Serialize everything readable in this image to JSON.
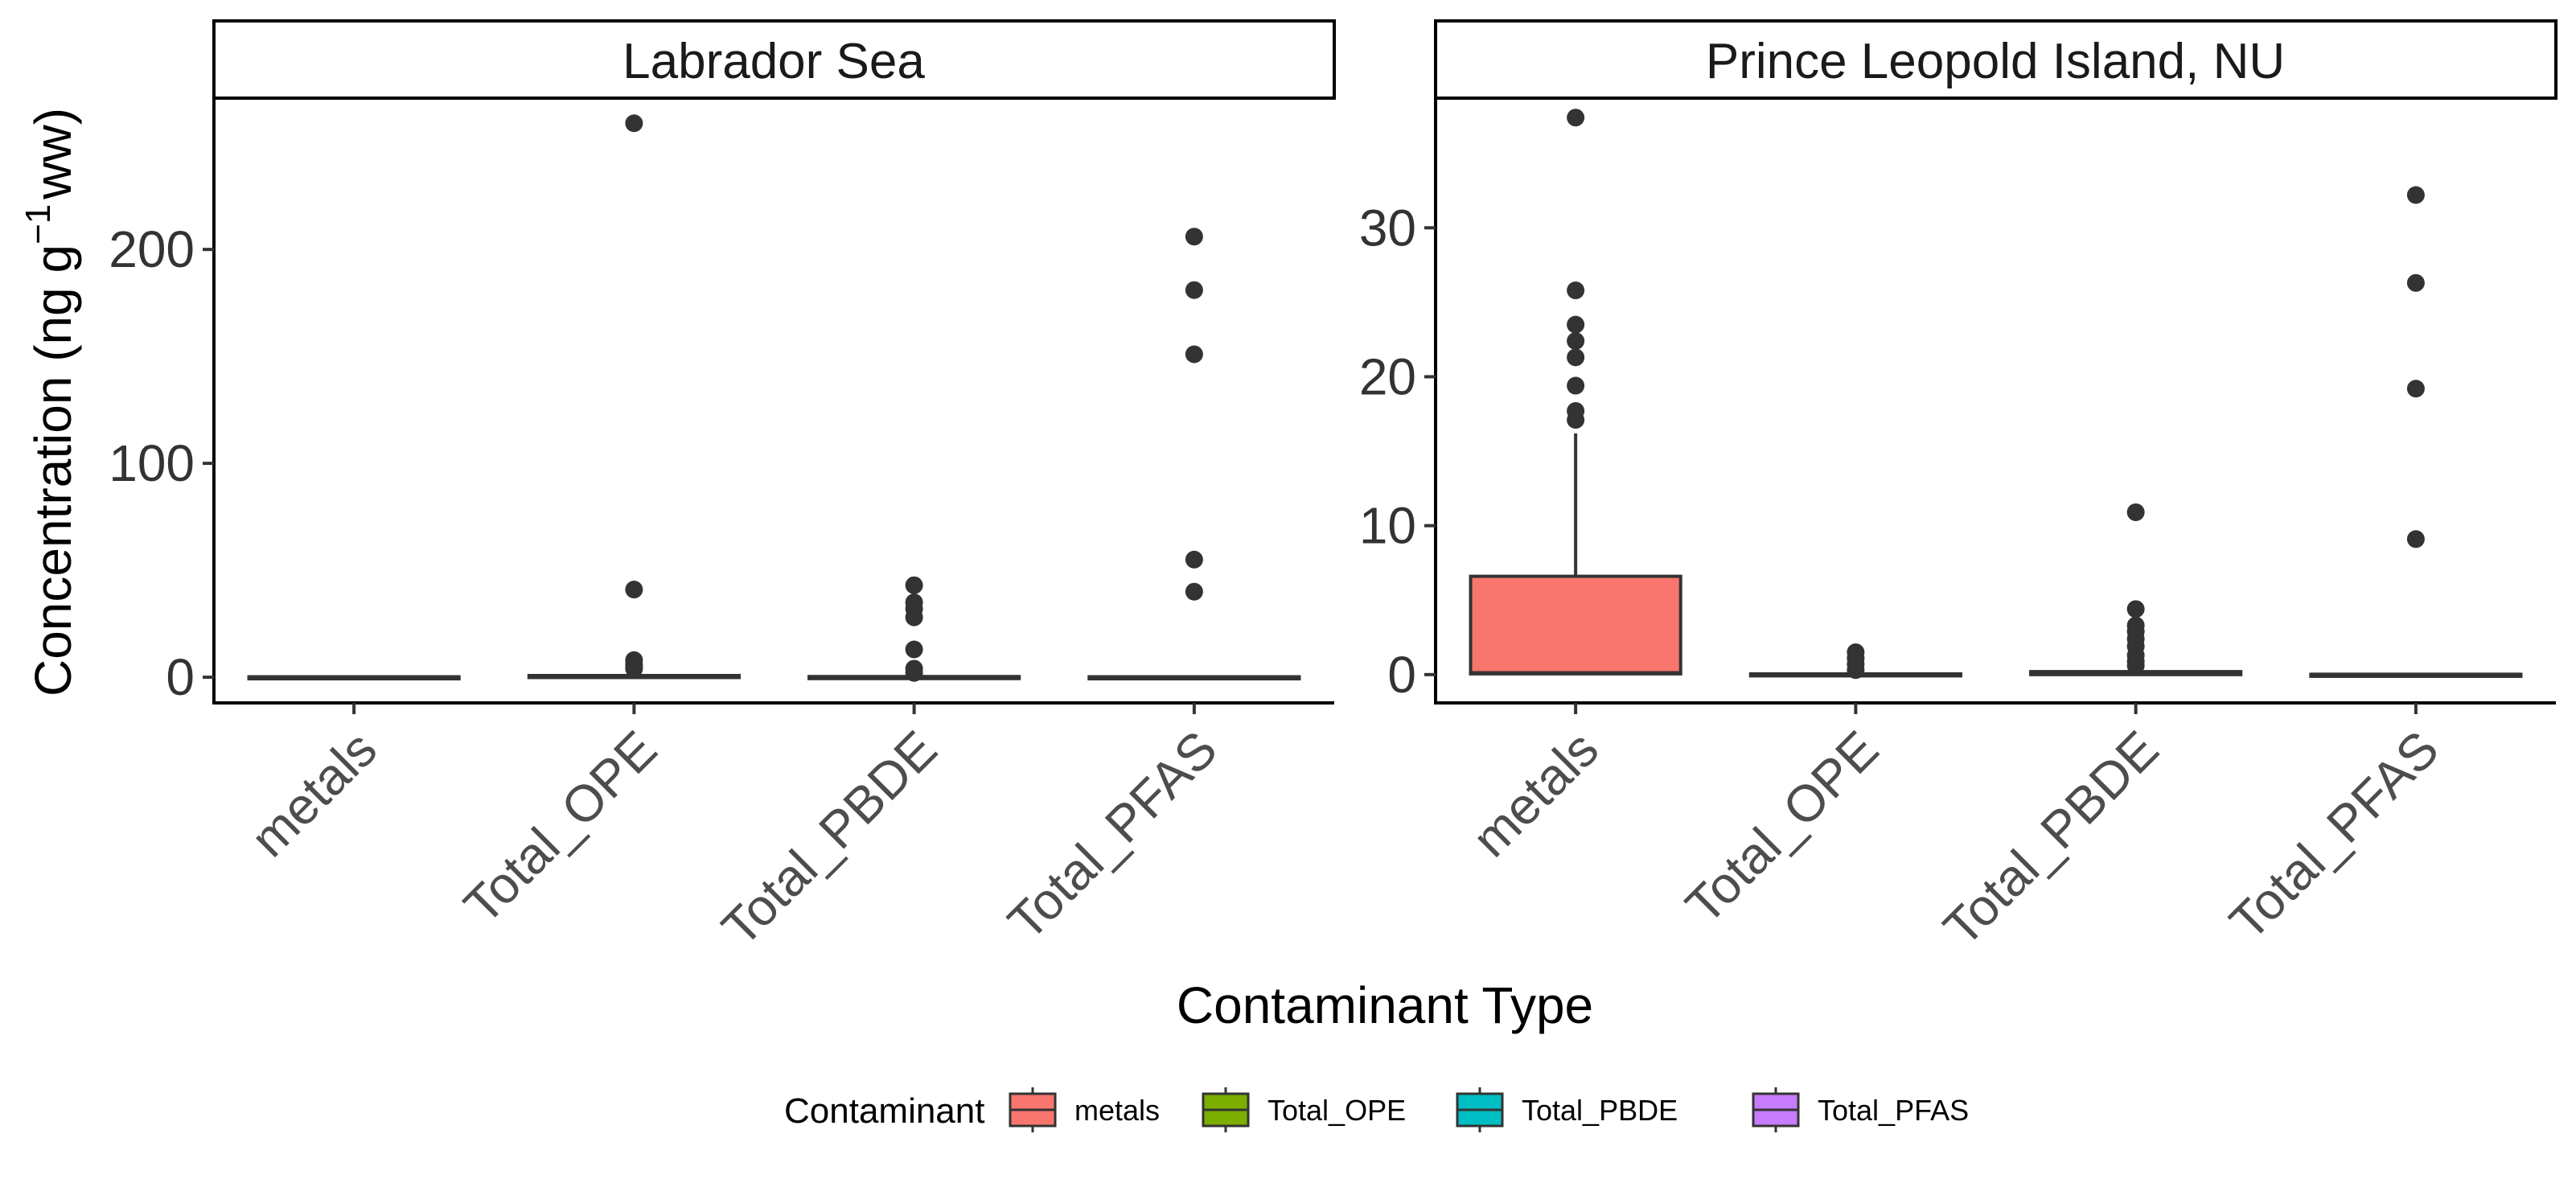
{
  "chart_data": [
    {
      "type": "boxplot",
      "facet": "Labrador Sea",
      "categories": [
        "metals",
        "Total_OPE",
        "Total_PBDE",
        "Total_PFAS"
      ],
      "ylim": [
        -12,
        270
      ],
      "yticks": [
        0,
        100,
        200
      ],
      "boxes": [
        {
          "category": "metals",
          "min": 0,
          "q1": 0,
          "median": 0,
          "q3": 0.2,
          "max": 0.5,
          "outliers": []
        },
        {
          "category": "Total_OPE",
          "min": 0,
          "q1": 0,
          "median": 0.3,
          "q3": 0.8,
          "max": 1.5,
          "outliers": [
            259,
            41,
            8,
            6,
            5,
            4
          ]
        },
        {
          "category": "Total_PBDE",
          "min": 0,
          "q1": 0,
          "median": 0.1,
          "q3": 0.3,
          "max": 0.8,
          "outliers": [
            43,
            35,
            32,
            28,
            13,
            4,
            2
          ]
        },
        {
          "category": "Total_PFAS",
          "min": 0,
          "q1": 0,
          "median": 0,
          "q3": 0.2,
          "max": 0.5,
          "outliers": [
            206,
            181,
            151,
            55,
            40
          ]
        }
      ]
    },
    {
      "type": "boxplot",
      "facet": "Prince Leopold Island, NU",
      "categories": [
        "metals",
        "Total_OPE",
        "Total_PBDE",
        "Total_PFAS"
      ],
      "ylim": [
        -1.9,
        38.6
      ],
      "yticks": [
        0,
        10,
        20,
        30
      ],
      "boxes": [
        {
          "category": "metals",
          "min": 0,
          "q1": 0.05,
          "median": 0.1,
          "q3": 6.6,
          "max": 16.2,
          "outliers": [
            37.4,
            25.8,
            23.5,
            22.4,
            21.3,
            19.4,
            17.7,
            17.1
          ]
        },
        {
          "category": "Total_OPE",
          "min": 0,
          "q1": 0,
          "median": 0,
          "q3": 0.05,
          "max": 0.1,
          "outliers": [
            1.5,
            1.1,
            0.7,
            0.3
          ]
        },
        {
          "category": "Total_PBDE",
          "min": 0,
          "q1": 0,
          "median": 0.05,
          "q3": 0.2,
          "max": 0.4,
          "outliers": [
            10.9,
            4.4,
            3.3,
            2.9,
            2.4,
            1.9,
            1.3,
            0.9,
            0.6
          ]
        },
        {
          "category": "Total_PFAS",
          "min": 0,
          "q1": 0,
          "median": 0,
          "q3": 0.02,
          "max": 0.05,
          "outliers": [
            32.2,
            26.3,
            19.2,
            9.1
          ]
        }
      ]
    }
  ],
  "xlabel": "Contaminant Type",
  "ylabel": {
    "base": "Concentration (ng g",
    "superscript": "−1",
    "suffix": "ww)"
  },
  "legend": {
    "title": "Contaminant",
    "position": "bottom",
    "items": [
      {
        "label": "metals",
        "color": "#F8766D"
      },
      {
        "label": "Total_OPE",
        "color": "#7CAE00"
      },
      {
        "label": "Total_PBDE",
        "color": "#00BFC4"
      },
      {
        "label": "Total_PFAS",
        "color": "#C77CFF"
      }
    ]
  },
  "colors": {
    "outlier": "#333333",
    "box_line": "#333333",
    "axis": "#000000"
  }
}
